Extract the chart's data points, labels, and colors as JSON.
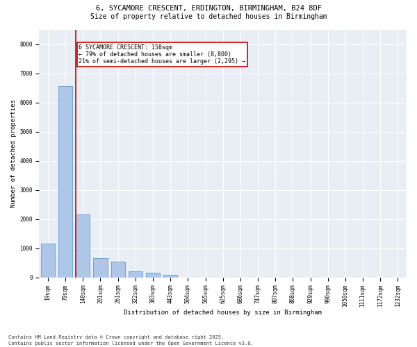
{
  "title_line1": "6, SYCAMORE CRESCENT, ERDINGTON, BIRMINGHAM, B24 8DF",
  "title_line2": "Size of property relative to detached houses in Birmingham",
  "xlabel": "Distribution of detached houses by size in Birmingham",
  "ylabel": "Number of detached properties",
  "categories": [
    "19sqm",
    "79sqm",
    "140sqm",
    "201sqm",
    "261sqm",
    "322sqm",
    "383sqm",
    "443sqm",
    "504sqm",
    "565sqm",
    "625sqm",
    "686sqm",
    "747sqm",
    "807sqm",
    "868sqm",
    "929sqm",
    "990sqm",
    "1050sqm",
    "1111sqm",
    "1172sqm",
    "1232sqm"
  ],
  "values": [
    1150,
    6550,
    2150,
    650,
    550,
    200,
    150,
    80,
    0,
    0,
    0,
    0,
    0,
    0,
    0,
    0,
    0,
    0,
    0,
    0,
    0
  ],
  "bar_color": "#aec6e8",
  "bar_edge_color": "#5b9bd5",
  "vline_x_index": 2,
  "vline_color": "#cc0000",
  "annotation_text": "6 SYCAMORE CRESCENT: 158sqm\n← 79% of detached houses are smaller (8,800)\n21% of semi-detached houses are larger (2,295) →",
  "annotation_box_color": "white",
  "annotation_edge_color": "#cc0000",
  "ylim": [
    0,
    8500
  ],
  "yticks": [
    0,
    1000,
    2000,
    3000,
    4000,
    5000,
    6000,
    7000,
    8000
  ],
  "bg_color": "#e8eef4",
  "grid_color": "white",
  "footer_line1": "Contains HM Land Registry data © Crown copyright and database right 2025.",
  "footer_line2": "Contains public sector information licensed under the Open Government Licence v3.0.",
  "title_fontsize": 7.5,
  "subtitle_fontsize": 7,
  "axis_label_fontsize": 6.5,
  "tick_fontsize": 5.5,
  "annotation_fontsize": 6,
  "footer_fontsize": 5
}
